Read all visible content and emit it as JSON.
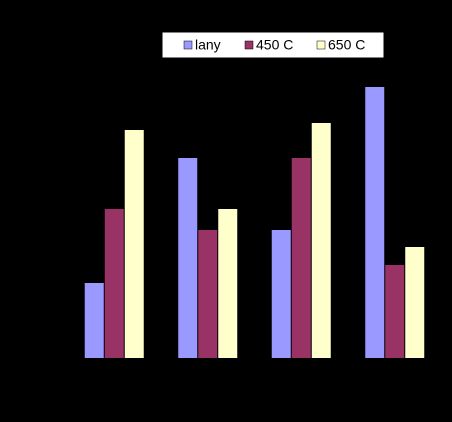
{
  "chart_data": {
    "type": "bar",
    "categories": [
      null,
      null,
      null,
      null
    ],
    "series": [
      {
        "name": "lany",
        "color": "#9999ff",
        "values": [
          75,
          200,
          128,
          271
        ]
      },
      {
        "name": "450 C",
        "color": "#993366",
        "values": [
          149,
          128,
          200,
          93
        ]
      },
      {
        "name": "650 C",
        "color": "#ffffcc",
        "values": [
          228,
          149,
          235,
          111
        ]
      }
    ],
    "ylim": [
      0,
      300
    ],
    "legend": "top"
  }
}
